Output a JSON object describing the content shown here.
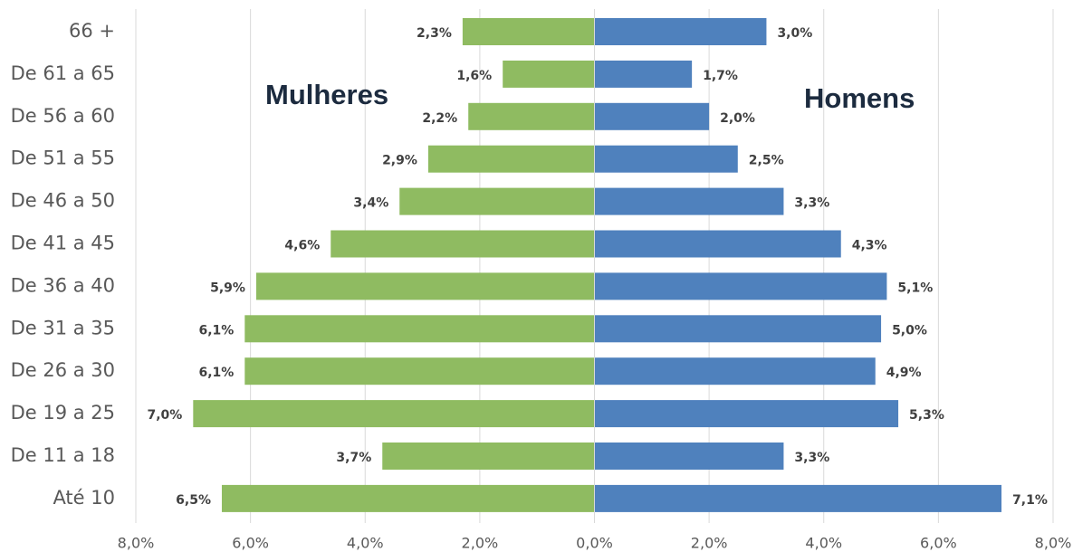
{
  "chart_data": {
    "type": "pyramid",
    "categories": [
      "66 +",
      "De 61 a 65",
      "De 56 a 60",
      "De 51 a 55",
      "De 46 a 50",
      "De 41 a 45",
      "De 36 a 40",
      "De 31 a 35",
      "De 26 a 30",
      "De 19 a 25",
      "De 11 a 18",
      "Até 10"
    ],
    "series": [
      {
        "name": "Mulheres",
        "color": "#8fbb61",
        "values": [
          -2.3,
          -1.6,
          -2.2,
          -2.9,
          -3.4,
          -4.6,
          -5.9,
          -6.1,
          -6.1,
          -7.0,
          -3.7,
          -6.5
        ],
        "value_labels": [
          "2,3%",
          "1,6%",
          "2,2%",
          "2,9%",
          "3,4%",
          "4,6%",
          "5,9%",
          "6,1%",
          "6,1%",
          "7,0%",
          "3,7%",
          "6,5%"
        ]
      },
      {
        "name": "Homens",
        "color": "#4f81bd",
        "values": [
          3.0,
          1.7,
          2.0,
          2.5,
          3.3,
          4.3,
          5.1,
          5.0,
          4.9,
          5.3,
          3.3,
          7.1
        ],
        "value_labels": [
          "3,0%",
          "1,7%",
          "2,0%",
          "2,5%",
          "3,3%",
          "4,3%",
          "5,1%",
          "5,0%",
          "4,9%",
          "5,3%",
          "3,3%",
          "7,1%"
        ]
      }
    ],
    "xlim": [
      -8,
      8
    ],
    "xticks": [
      {
        "value": -8,
        "label": "8,0%"
      },
      {
        "value": -6,
        "label": "6,0%"
      },
      {
        "value": -4,
        "label": "4,0%"
      },
      {
        "value": -2,
        "label": "2,0%"
      },
      {
        "value": 0,
        "label": "0,0%"
      },
      {
        "value": 2,
        "label": "2,0%"
      },
      {
        "value": 4,
        "label": "4,0%"
      },
      {
        "value": 6,
        "label": "6,0%"
      },
      {
        "value": 8,
        "label": "8,0%"
      }
    ],
    "grid": true
  }
}
